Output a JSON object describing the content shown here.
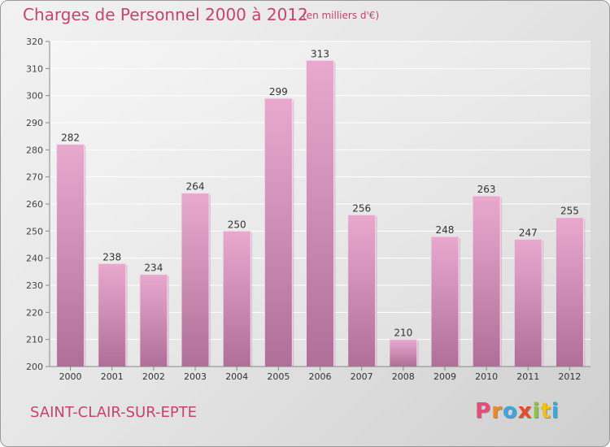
{
  "title": "Charges de Personnel 2000 à 2012",
  "subtitle": "(en milliers d'€)",
  "city": "SAINT-CLAIR-SUR-EPTE",
  "logo": {
    "letters": [
      "P",
      "r",
      "o",
      "x",
      "i",
      "t",
      "i"
    ],
    "colors": [
      "#e84b7a",
      "#f08a1c",
      "#3aa7e0",
      "#e84b2a",
      "#8cc63e",
      "#f0c21c",
      "#3aa7e0"
    ]
  },
  "colors": {
    "accent": "#c4446f",
    "bar_top": "#e9a9cf",
    "bar_bottom": "#b06f98"
  },
  "chart_data": {
    "type": "bar",
    "title": "Charges de Personnel 2000 à 2012",
    "subtitle": "(en milliers d'€)",
    "categories": [
      "2000",
      "2001",
      "2002",
      "2003",
      "2004",
      "2005",
      "2006",
      "2007",
      "2008",
      "2009",
      "2010",
      "2011",
      "2012"
    ],
    "values": [
      282,
      238,
      234,
      264,
      250,
      299,
      313,
      256,
      210,
      248,
      263,
      247,
      255
    ],
    "ylim": [
      200,
      320
    ],
    "yticks": [
      200,
      210,
      220,
      230,
      240,
      250,
      260,
      270,
      280,
      290,
      300,
      310,
      320
    ],
    "xlabel": "",
    "ylabel": "",
    "grid": true
  }
}
